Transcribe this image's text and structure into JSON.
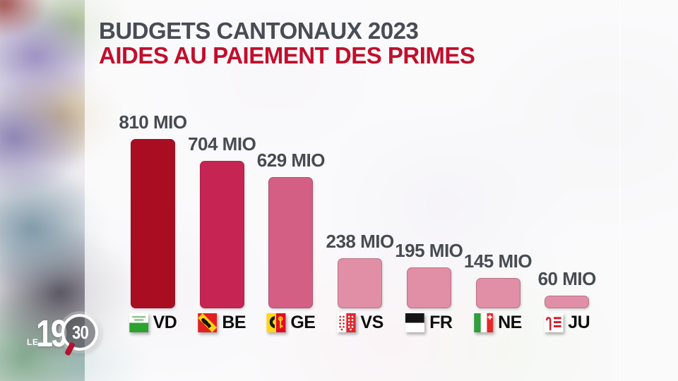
{
  "header": {
    "title_line1": "BUDGETS CANTONAUX 2023",
    "title_line2": "AIDES AU PAIEMENT DES PRIMES",
    "title_line1_color": "#474c55",
    "title_line2_color": "#c00f2d"
  },
  "chart_data": {
    "type": "bar",
    "title": "BUDGETS CANTONAUX 2023 — AIDES AU PAIEMENT DES PRIMES",
    "unit": "MIO",
    "categories": [
      "VD",
      "BE",
      "GE",
      "VS",
      "FR",
      "NE",
      "JU"
    ],
    "values": [
      810,
      704,
      629,
      238,
      195,
      145,
      60
    ],
    "labels": [
      "810 MIO",
      "704 MIO",
      "629 MIO",
      "238 MIO",
      "195 MIO",
      "145 MIO",
      "60 MIO"
    ],
    "bar_colors": [
      "#a90d21",
      "#c62553",
      "#d45f84",
      "#e18fa6",
      "#e18fa6",
      "#e18fa6",
      "#e18fa6"
    ],
    "flag_icons": [
      "vd-flag-icon",
      "be-flag-icon",
      "ge-flag-icon",
      "vs-flag-icon",
      "fr-flag-icon",
      "ne-flag-icon",
      "ju-flag-icon"
    ],
    "ylim": [
      0,
      810
    ],
    "grid": false,
    "legend_position": "below-bars",
    "value_label_color": "#474b52",
    "category_label_color": "#0d0d0d"
  },
  "logo": {
    "le": "LE",
    "hour": "19",
    "minutes": "30",
    "accent_color": "#b5122e"
  }
}
